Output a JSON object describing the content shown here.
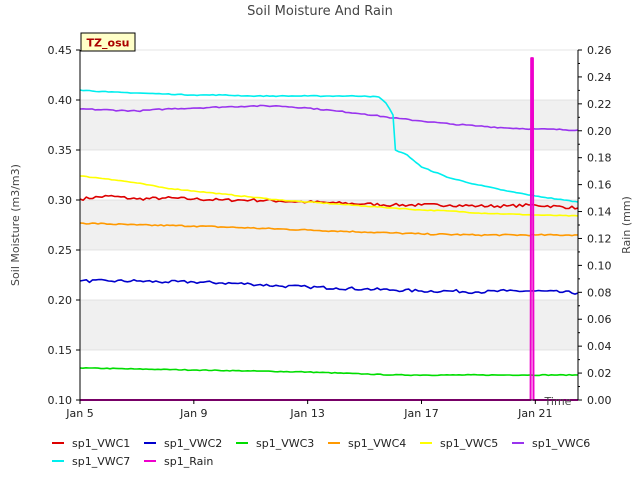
{
  "chart_data": {
    "type": "line",
    "title": "Soil Moisture And Rain",
    "badge": "TZ_osu",
    "xlabel": "Time",
    "ylabel": "Soil Moisture (m3/m3)",
    "y2label": "Rain (mm)",
    "xlim": [
      "2024-01-05",
      "2024-01-22T12:00"
    ],
    "ylim": [
      0.1,
      0.45
    ],
    "y2lim": [
      0.0,
      0.26
    ],
    "grid": "horizontal bands",
    "legend": "bottom",
    "x_ticks": [
      {
        "date": "2024-01-05",
        "label": "Jan 5"
      },
      {
        "date": "2024-01-09",
        "label": "Jan 9"
      },
      {
        "date": "2024-01-13",
        "label": "Jan 13"
      },
      {
        "date": "2024-01-17",
        "label": "Jan 17"
      },
      {
        "date": "2024-01-21",
        "label": "Jan 21"
      }
    ],
    "y_ticks": [
      "0.10",
      "0.15",
      "0.20",
      "0.25",
      "0.30",
      "0.35",
      "0.40",
      "0.45"
    ],
    "y2_ticks": [
      "0.00",
      "0.02",
      "0.04",
      "0.06",
      "0.08",
      "0.10",
      "0.12",
      "0.14",
      "0.16",
      "0.18",
      "0.20",
      "0.22",
      "0.24",
      "0.26"
    ],
    "series": [
      {
        "name": "sp1_VWC1",
        "color": "#dd0000",
        "axis": "left",
        "noise": 0.0015,
        "points": [
          [
            "2024-01-05",
            0.301
          ],
          [
            "2024-01-06",
            0.304
          ],
          [
            "2024-01-07",
            0.301
          ],
          [
            "2024-01-08",
            0.302
          ],
          [
            "2024-01-09",
            0.301
          ],
          [
            "2024-01-10",
            0.3
          ],
          [
            "2024-01-11",
            0.3
          ],
          [
            "2024-01-12",
            0.299
          ],
          [
            "2024-01-13",
            0.298
          ],
          [
            "2024-01-14",
            0.297
          ],
          [
            "2024-01-15",
            0.296
          ],
          [
            "2024-01-16",
            0.295
          ],
          [
            "2024-01-17",
            0.295
          ],
          [
            "2024-01-18",
            0.295
          ],
          [
            "2024-01-19",
            0.294
          ],
          [
            "2024-01-20",
            0.294
          ],
          [
            "2024-01-21",
            0.295
          ],
          [
            "2024-01-22T12:00",
            0.292
          ]
        ]
      },
      {
        "name": "sp1_VWC2",
        "color": "#0000cc",
        "axis": "left",
        "noise": 0.0015,
        "points": [
          [
            "2024-01-05",
            0.219
          ],
          [
            "2024-01-06",
            0.219
          ],
          [
            "2024-01-07",
            0.219
          ],
          [
            "2024-01-08",
            0.218
          ],
          [
            "2024-01-09",
            0.218
          ],
          [
            "2024-01-10",
            0.217
          ],
          [
            "2024-01-11",
            0.216
          ],
          [
            "2024-01-12",
            0.214
          ],
          [
            "2024-01-13",
            0.213
          ],
          [
            "2024-01-14",
            0.212
          ],
          [
            "2024-01-15",
            0.211
          ],
          [
            "2024-01-16",
            0.21
          ],
          [
            "2024-01-17",
            0.209
          ],
          [
            "2024-01-18",
            0.209
          ],
          [
            "2024-01-19",
            0.208
          ],
          [
            "2024-01-20",
            0.209
          ],
          [
            "2024-01-21",
            0.209
          ],
          [
            "2024-01-22T12:00",
            0.207
          ]
        ]
      },
      {
        "name": "sp1_VWC3",
        "color": "#00dd00",
        "axis": "left",
        "noise": 0.0004,
        "points": [
          [
            "2024-01-05",
            0.132
          ],
          [
            "2024-01-07",
            0.131
          ],
          [
            "2024-01-09",
            0.13
          ],
          [
            "2024-01-11",
            0.129
          ],
          [
            "2024-01-13",
            0.128
          ],
          [
            "2024-01-15",
            0.126
          ],
          [
            "2024-01-16",
            0.125
          ],
          [
            "2024-01-18",
            0.125
          ],
          [
            "2024-01-20",
            0.125
          ],
          [
            "2024-01-22T12:00",
            0.125
          ]
        ]
      },
      {
        "name": "sp1_VWC4",
        "color": "#ff9900",
        "axis": "left",
        "noise": 0.0007,
        "points": [
          [
            "2024-01-05",
            0.277
          ],
          [
            "2024-01-07",
            0.275
          ],
          [
            "2024-01-09",
            0.274
          ],
          [
            "2024-01-11",
            0.272
          ],
          [
            "2024-01-13",
            0.27
          ],
          [
            "2024-01-15",
            0.268
          ],
          [
            "2024-01-16",
            0.267
          ],
          [
            "2024-01-17",
            0.266
          ],
          [
            "2024-01-19",
            0.265
          ],
          [
            "2024-01-21",
            0.265
          ],
          [
            "2024-01-22T12:00",
            0.265
          ]
        ]
      },
      {
        "name": "sp1_VWC5",
        "color": "#ffff00",
        "axis": "left",
        "noise": 0.0004,
        "points": [
          [
            "2024-01-05",
            0.324
          ],
          [
            "2024-01-06",
            0.321
          ],
          [
            "2024-01-07",
            0.317
          ],
          [
            "2024-01-08",
            0.312
          ],
          [
            "2024-01-09",
            0.309
          ],
          [
            "2024-01-10",
            0.306
          ],
          [
            "2024-01-11",
            0.303
          ],
          [
            "2024-01-12",
            0.3
          ],
          [
            "2024-01-13",
            0.298
          ],
          [
            "2024-01-14",
            0.296
          ],
          [
            "2024-01-15",
            0.294
          ],
          [
            "2024-01-16",
            0.292
          ],
          [
            "2024-01-17",
            0.29
          ],
          [
            "2024-01-18",
            0.289
          ],
          [
            "2024-01-19",
            0.287
          ],
          [
            "2024-01-20",
            0.286
          ],
          [
            "2024-01-21",
            0.285
          ],
          [
            "2024-01-22T12:00",
            0.284
          ]
        ]
      },
      {
        "name": "sp1_VWC6",
        "color": "#9933ee",
        "axis": "left",
        "noise": 0.0006,
        "points": [
          [
            "2024-01-05",
            0.391
          ],
          [
            "2024-01-07",
            0.389
          ],
          [
            "2024-01-08",
            0.391
          ],
          [
            "2024-01-09",
            0.392
          ],
          [
            "2024-01-10",
            0.393
          ],
          [
            "2024-01-11",
            0.394
          ],
          [
            "2024-01-12",
            0.394
          ],
          [
            "2024-01-13",
            0.392
          ],
          [
            "2024-01-14",
            0.389
          ],
          [
            "2024-01-15",
            0.386
          ],
          [
            "2024-01-16",
            0.382
          ],
          [
            "2024-01-17",
            0.379
          ],
          [
            "2024-01-18",
            0.376
          ],
          [
            "2024-01-19",
            0.374
          ],
          [
            "2024-01-20",
            0.372
          ],
          [
            "2024-01-21",
            0.371
          ],
          [
            "2024-01-22T12:00",
            0.37
          ]
        ]
      },
      {
        "name": "sp1_VWC7",
        "color": "#00eeee",
        "axis": "left",
        "noise": 0.0004,
        "points": [
          [
            "2024-01-05",
            0.41
          ],
          [
            "2024-01-06",
            0.408
          ],
          [
            "2024-01-07",
            0.407
          ],
          [
            "2024-01-08",
            0.406
          ],
          [
            "2024-01-09",
            0.405
          ],
          [
            "2024-01-10",
            0.405
          ],
          [
            "2024-01-11",
            0.404
          ],
          [
            "2024-01-12",
            0.404
          ],
          [
            "2024-01-13",
            0.404
          ],
          [
            "2024-01-14",
            0.404
          ],
          [
            "2024-01-15",
            0.404
          ],
          [
            "2024-01-15T12:00",
            0.403
          ],
          [
            "2024-01-15T18:00",
            0.397
          ],
          [
            "2024-01-16T00:00",
            0.385
          ],
          [
            "2024-01-16T02:00",
            0.35
          ],
          [
            "2024-01-16T12:00",
            0.345
          ],
          [
            "2024-01-17",
            0.333
          ],
          [
            "2024-01-18",
            0.322
          ],
          [
            "2024-01-19",
            0.315
          ],
          [
            "2024-01-20",
            0.309
          ],
          [
            "2024-01-21",
            0.304
          ],
          [
            "2024-01-22",
            0.3
          ],
          [
            "2024-01-22T12:00",
            0.298
          ]
        ]
      },
      {
        "name": "sp1_Rain",
        "color": "#ee00cc",
        "axis": "right",
        "noise": 0,
        "points": [
          [
            "2024-01-05",
            0.0
          ],
          [
            "2024-01-20T20:00",
            0.0
          ],
          [
            "2024-01-20T20:30",
            0.254
          ],
          [
            "2024-01-20T22:00",
            0.254
          ],
          [
            "2024-01-20T22:30",
            0.0
          ],
          [
            "2024-01-22T12:00",
            0.0
          ]
        ]
      }
    ]
  }
}
